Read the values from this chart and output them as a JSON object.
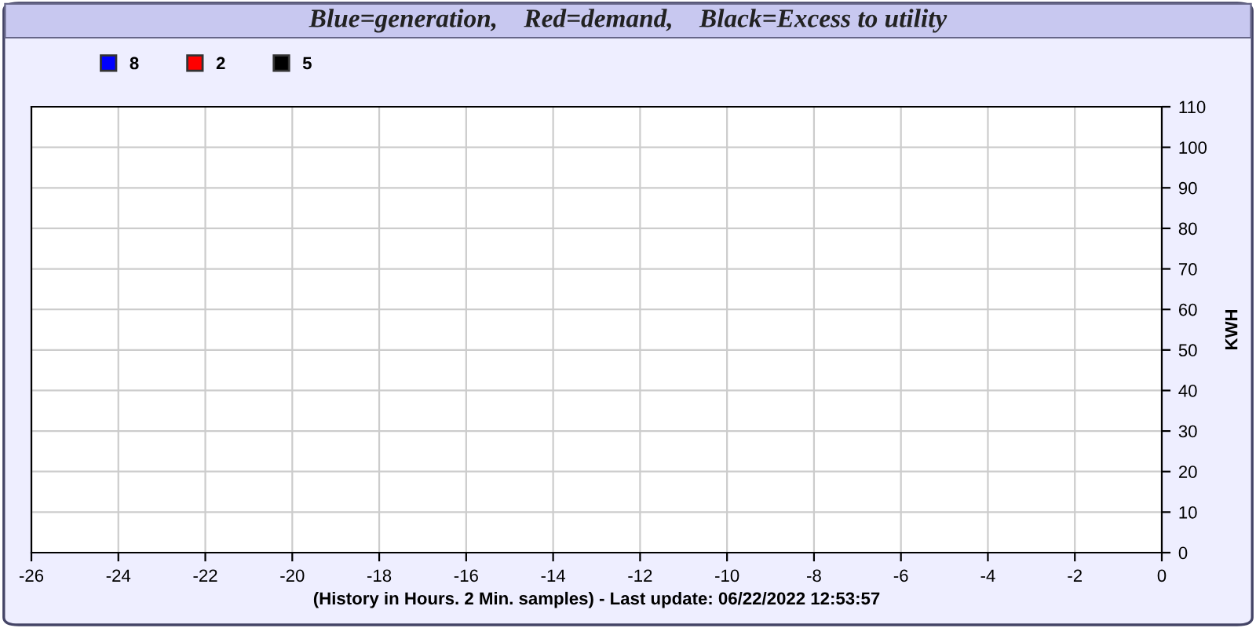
{
  "chart_data": {
    "type": "line",
    "title": "Blue=generation,    Red=demand,    Black=Excess to utility",
    "xlabel": "(History in Hours. 2 Min. samples) - Last update: 06/22/2022 12:53:57",
    "ylabel": "KWH",
    "series": [
      {
        "name": "8",
        "color": "#0000ff",
        "values": [
          null,
          null,
          null,
          null,
          null,
          null,
          null,
          null,
          null,
          null,
          null,
          null,
          null,
          null
        ]
      },
      {
        "name": "2",
        "color": "#ff0000",
        "values": [
          null,
          null,
          null,
          null,
          null,
          null,
          null,
          null,
          null,
          null,
          null,
          null,
          null,
          null
        ]
      },
      {
        "name": "5",
        "color": "#000000",
        "values": [
          null,
          null,
          null,
          null,
          null,
          null,
          null,
          null,
          null,
          null,
          null,
          null,
          null,
          null
        ]
      }
    ],
    "categories": [
      "-26",
      "-24",
      "-22",
      "-20",
      "-18",
      "-16",
      "-14",
      "-12",
      "-10",
      "-8",
      "-6",
      "-4",
      "-2",
      "0"
    ],
    "ylim": [
      0,
      110
    ],
    "yticks": [
      0,
      10,
      20,
      30,
      40,
      50,
      60,
      70,
      80,
      90,
      100,
      110
    ],
    "grid": true,
    "legend": "top left"
  }
}
